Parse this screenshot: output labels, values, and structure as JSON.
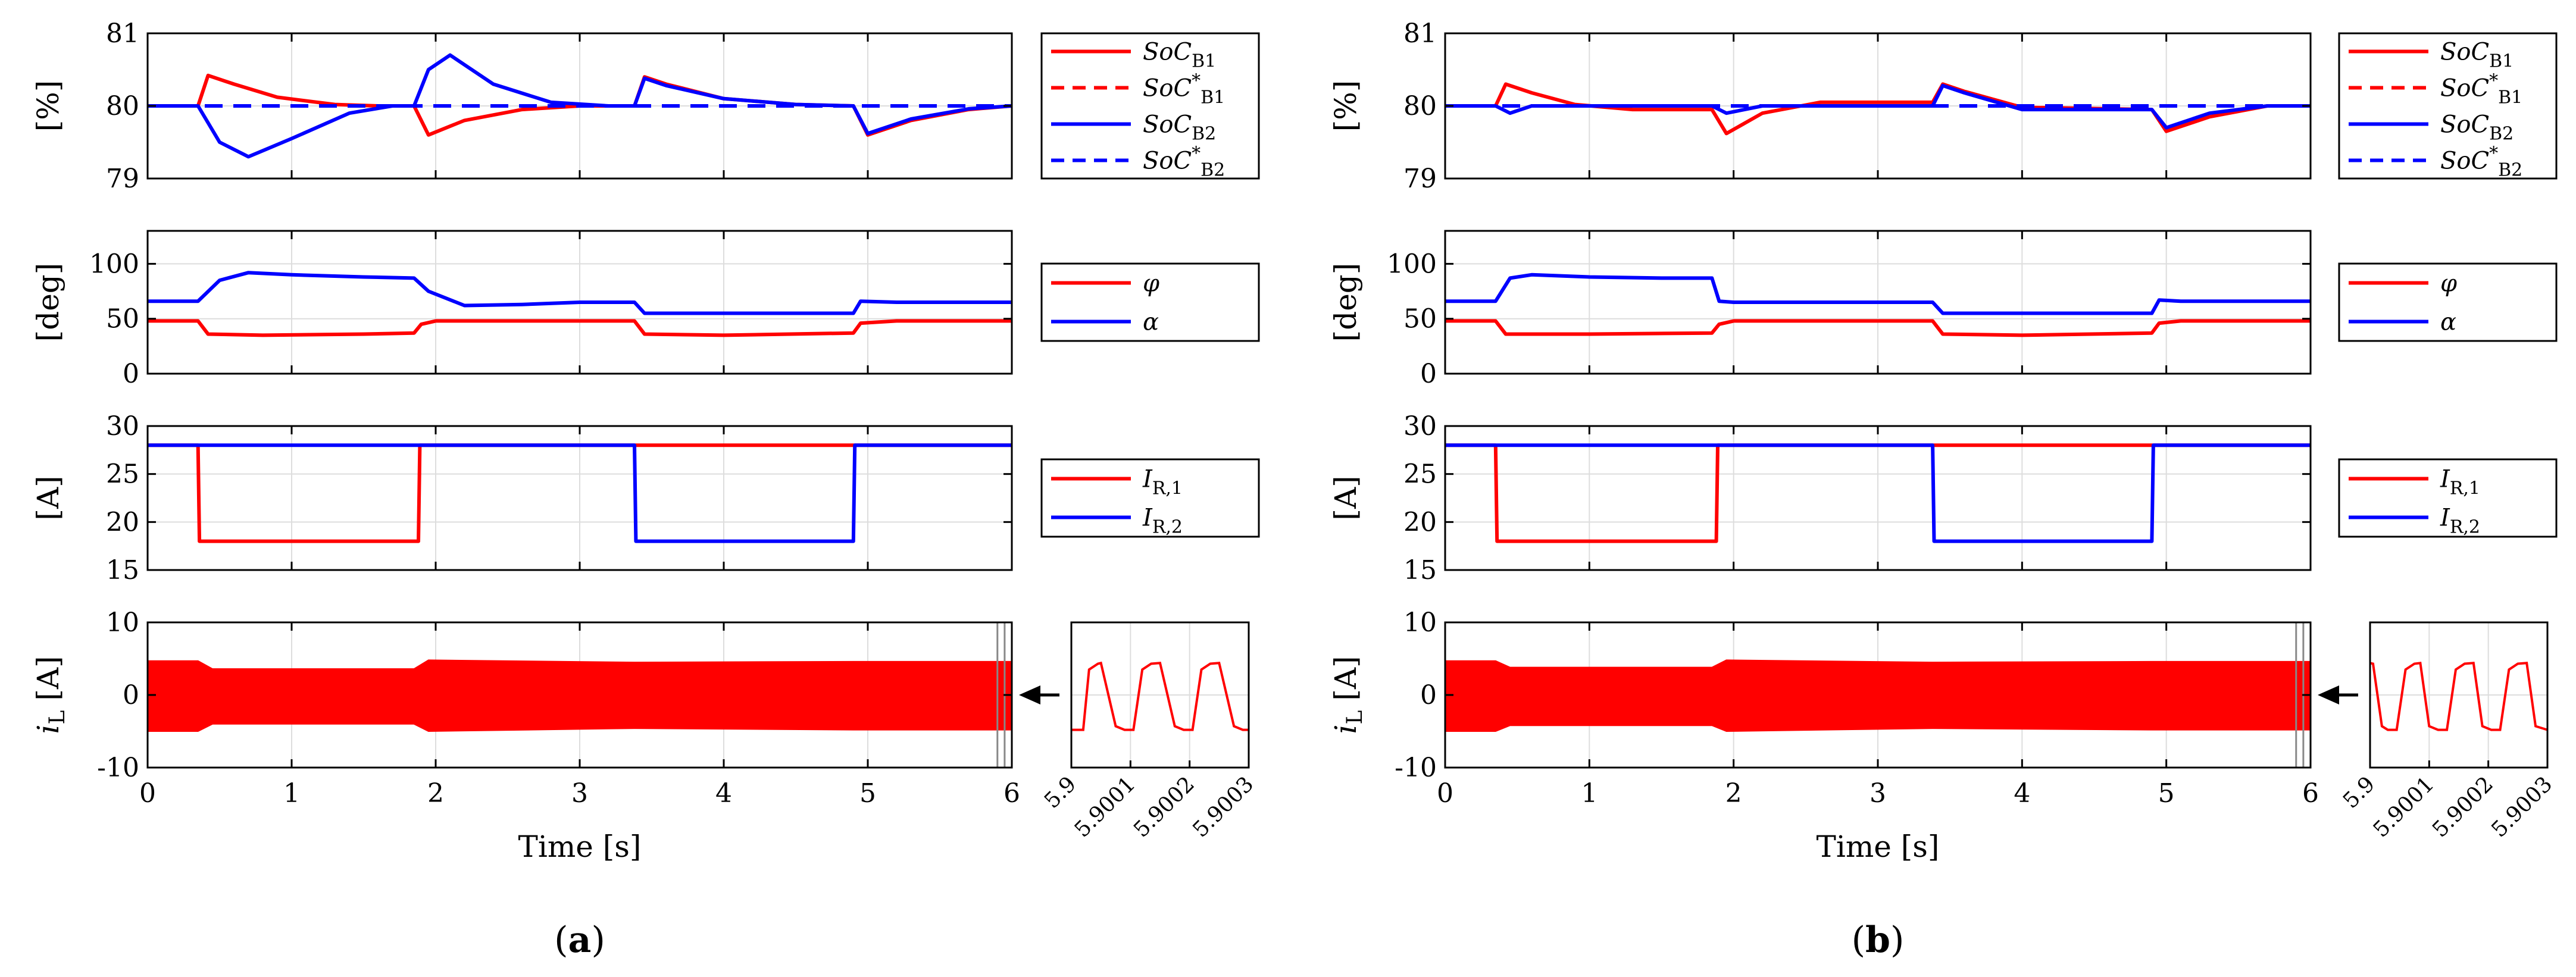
{
  "chart_data": {
    "type": "line",
    "time_axis": {
      "label": "Time [s]",
      "ticks": [
        "0",
        "1",
        "2",
        "3",
        "4",
        "5",
        "6"
      ],
      "xlim": [
        0,
        6
      ]
    },
    "zoom_axis": {
      "ticks": [
        "5.9",
        "5.9001",
        "5.9002",
        "5.9003"
      ],
      "xlim": [
        5.9,
        5.9003
      ]
    },
    "subplots": [
      {
        "id": "soc",
        "ylabel": "[%]",
        "ylim": [
          79,
          81
        ],
        "yticks": [
          "79",
          "80",
          "81"
        ],
        "legend": [
          "SoC_B1",
          "SoC*_B1",
          "SoC_B2",
          "SoC*_B2"
        ]
      },
      {
        "id": "angle",
        "ylabel": "[deg]",
        "ylim": [
          0,
          130
        ],
        "yticks": [
          "0",
          "50",
          "100"
        ],
        "legend": [
          "φ",
          "α"
        ]
      },
      {
        "id": "current_ref",
        "ylabel": "[A]",
        "ylim": [
          15,
          30
        ],
        "yticks": [
          "15",
          "20",
          "25",
          "30"
        ],
        "legend": [
          "I_R,1",
          "I_R,2"
        ]
      },
      {
        "id": "inductor",
        "ylabel": "i_L [A]",
        "ylim": [
          -10,
          10
        ],
        "yticks": [
          "-10",
          "0",
          "10"
        ],
        "legend": []
      }
    ],
    "panels": [
      {
        "caption": "a",
        "soc_b1": {
          "x": [
            0,
            0.35,
            0.42,
            0.6,
            0.9,
            1.3,
            1.6,
            1.85,
            1.95,
            2.2,
            2.6,
            3.0,
            3.38,
            3.45,
            3.6,
            4.0,
            4.5,
            4.9,
            5.0,
            5.3,
            5.7,
            6.0
          ],
          "y": [
            80,
            80,
            80.42,
            80.3,
            80.12,
            80.02,
            80,
            80,
            79.6,
            79.8,
            79.95,
            80,
            80,
            80.4,
            80.3,
            80.1,
            80.02,
            80,
            79.6,
            79.8,
            79.95,
            80
          ]
        },
        "soc_b1_ref": 80,
        "soc_b2": {
          "x": [
            0,
            0.35,
            0.5,
            0.7,
            1.0,
            1.4,
            1.7,
            1.85,
            1.95,
            2.1,
            2.4,
            2.8,
            3.2,
            3.38,
            3.45,
            3.6,
            4.0,
            4.5,
            4.9,
            5.0,
            5.3,
            5.7,
            6.0
          ],
          "y": [
            80,
            80,
            79.5,
            79.3,
            79.55,
            79.9,
            80,
            80,
            80.5,
            80.7,
            80.3,
            80.05,
            80,
            80,
            80.38,
            80.28,
            80.1,
            80.02,
            80,
            79.62,
            79.82,
            79.96,
            80
          ]
        },
        "soc_b2_ref": 80,
        "phi": {
          "x": [
            0,
            0.35,
            0.42,
            0.8,
            1.5,
            1.85,
            1.9,
            2.0,
            2.5,
            3.38,
            3.45,
            4.0,
            4.9,
            4.95,
            5.2,
            6.0
          ],
          "y": [
            48,
            48,
            36,
            35,
            36,
            37,
            45,
            48,
            48,
            48,
            36,
            35,
            37,
            46,
            48,
            48
          ]
        },
        "alpha": {
          "x": [
            0,
            0.35,
            0.5,
            0.7,
            1.0,
            1.5,
            1.85,
            1.95,
            2.2,
            2.6,
            3.0,
            3.38,
            3.45,
            4.0,
            4.9,
            4.95,
            5.2,
            6.0
          ],
          "y": [
            66,
            66,
            85,
            92,
            90,
            88,
            87,
            75,
            62,
            63,
            65,
            65,
            55,
            55,
            55,
            66,
            65,
            65
          ]
        },
        "i_r1": {
          "x": [
            0,
            0.35,
            0.36,
            1.88,
            1.89,
            3.38,
            3.39,
            6.0
          ],
          "y": [
            28,
            28,
            18,
            18,
            28,
            28,
            28,
            28
          ]
        },
        "i_r2": {
          "x": [
            0,
            3.38,
            3.39,
            4.9,
            4.91,
            6.0
          ],
          "y": [
            28,
            28,
            18,
            18,
            28,
            28
          ]
        },
        "i_l_envelope": {
          "x": [
            0,
            0.35,
            0.45,
            1.85,
            1.95,
            3.38,
            4.9,
            6.0
          ],
          "upper": [
            4.7,
            4.7,
            3.6,
            3.6,
            4.8,
            4.5,
            4.6,
            4.6
          ],
          "lower": [
            -5,
            -5,
            -4,
            -4,
            -5,
            -4.6,
            -4.8,
            -4.8
          ]
        },
        "zoom_il": {
          "x": [
            5.9,
            5.90002,
            5.90003,
            5.900045,
            5.90005,
            5.900075,
            5.90009,
            5.900105,
            5.90012,
            5.900135,
            5.90015,
            5.900175,
            5.90019,
            5.900205,
            5.90022,
            5.900235,
            5.90025,
            5.900275,
            5.90029,
            5.9003
          ],
          "y": [
            -4.8,
            -4.8,
            3.5,
            4.3,
            4.4,
            -4.3,
            -4.8,
            -4.8,
            3.5,
            4.3,
            4.4,
            -4.3,
            -4.8,
            -4.8,
            3.5,
            4.3,
            4.4,
            -4.3,
            -4.8,
            -4.8
          ]
        }
      },
      {
        "caption": "b",
        "soc_b1": {
          "x": [
            0,
            0.35,
            0.42,
            0.6,
            0.9,
            1.3,
            1.85,
            1.95,
            2.2,
            2.6,
            3.38,
            3.45,
            3.6,
            4.0,
            4.9,
            5.0,
            5.3,
            5.7,
            6.0
          ],
          "y": [
            80,
            80,
            80.3,
            80.18,
            80.02,
            79.95,
            79.95,
            79.62,
            79.9,
            80.05,
            80.05,
            80.3,
            80.2,
            79.98,
            79.95,
            79.65,
            79.85,
            80,
            80
          ]
        },
        "soc_b1_ref": 80,
        "soc_b2": {
          "x": [
            0,
            0.35,
            0.45,
            0.6,
            1.0,
            1.85,
            1.95,
            2.2,
            2.6,
            3.38,
            3.45,
            3.6,
            4.0,
            4.9,
            5.0,
            5.3,
            5.7,
            6.0
          ],
          "y": [
            80,
            80,
            79.9,
            80,
            80,
            80,
            79.9,
            80,
            80,
            80,
            80.28,
            80.18,
            79.95,
            79.95,
            79.7,
            79.9,
            80,
            80
          ]
        },
        "soc_b2_ref": 80,
        "phi": {
          "x": [
            0,
            0.35,
            0.42,
            1.0,
            1.85,
            1.9,
            2.0,
            3.38,
            3.45,
            4.0,
            4.9,
            4.95,
            5.1,
            6.0
          ],
          "y": [
            48,
            48,
            36,
            36,
            37,
            45,
            48,
            48,
            36,
            35,
            37,
            46,
            48,
            48
          ]
        },
        "alpha": {
          "x": [
            0,
            0.35,
            0.45,
            0.6,
            1.0,
            1.5,
            1.85,
            1.9,
            2.0,
            3.38,
            3.45,
            4.0,
            4.9,
            4.95,
            5.1,
            6.0
          ],
          "y": [
            66,
            66,
            87,
            90,
            88,
            87,
            87,
            66,
            65,
            65,
            55,
            55,
            55,
            67,
            66,
            66
          ]
        },
        "i_r1": {
          "x": [
            0,
            0.35,
            0.36,
            1.88,
            1.89,
            3.38,
            3.39,
            6.0
          ],
          "y": [
            28,
            28,
            18,
            18,
            28,
            28,
            28,
            28
          ]
        },
        "i_r2": {
          "x": [
            0,
            3.38,
            3.39,
            4.9,
            4.91,
            6.0
          ],
          "y": [
            28,
            28,
            18,
            18,
            28,
            28
          ]
        },
        "i_l_envelope": {
          "x": [
            0,
            0.35,
            0.45,
            1.85,
            1.95,
            3.38,
            4.9,
            6.0
          ],
          "upper": [
            4.7,
            4.7,
            3.8,
            3.8,
            4.8,
            4.5,
            4.6,
            4.6
          ],
          "lower": [
            -5,
            -5,
            -4.2,
            -4.2,
            -5,
            -4.6,
            -4.8,
            -4.8
          ]
        },
        "zoom_il": {
          "x": [
            5.9,
            5.900005,
            5.90002,
            5.90003,
            5.900045,
            5.90006,
            5.900075,
            5.900085,
            5.9001,
            5.900115,
            5.90013,
            5.900145,
            5.90016,
            5.900175,
            5.90019,
            5.900205,
            5.90022,
            5.900235,
            5.90025,
            5.900265,
            5.90028,
            5.9003
          ],
          "y": [
            4.4,
            4.3,
            -4.3,
            -4.8,
            -4.8,
            3.5,
            4.3,
            4.4,
            -4.3,
            -4.8,
            -4.8,
            3.5,
            4.3,
            4.4,
            -4.3,
            -4.8,
            -4.8,
            3.5,
            4.3,
            4.4,
            -4.3,
            -4.8
          ]
        }
      }
    ],
    "colors": {
      "red": "#ff0000",
      "blue": "#0000ff",
      "grid": "#dddddd"
    }
  }
}
